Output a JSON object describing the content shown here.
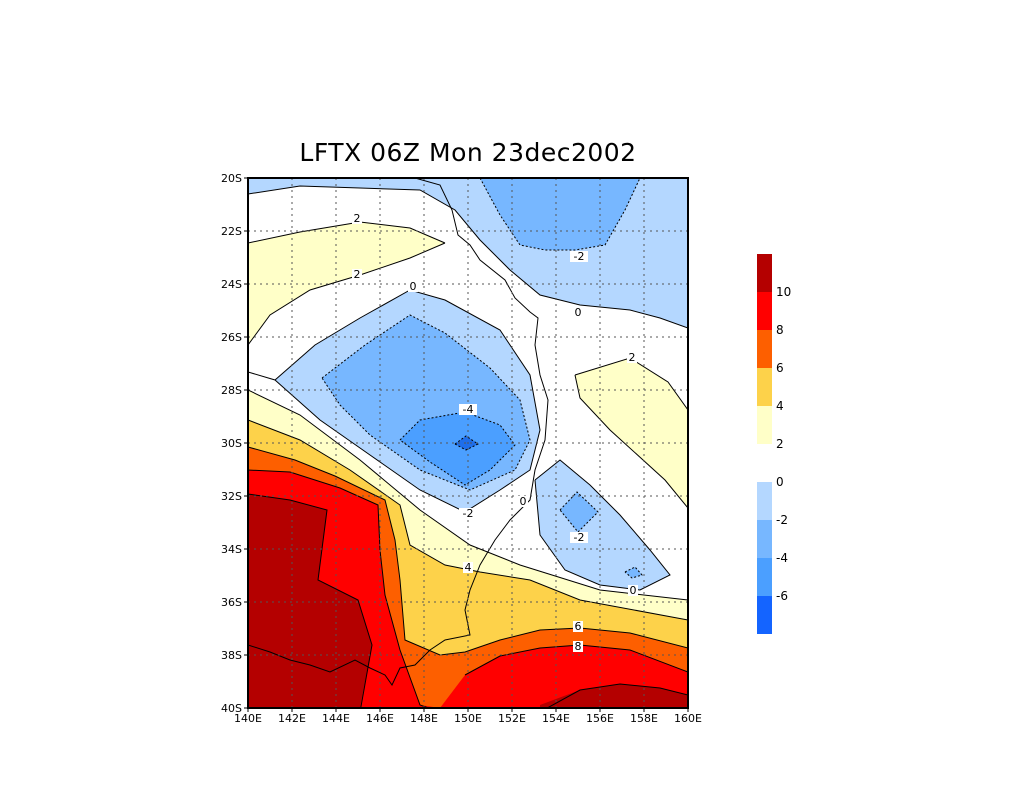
{
  "title": "LFTX 06Z Mon 23dec2002",
  "map": {
    "lon_range": [
      140,
      160
    ],
    "lat_range": [
      -40,
      -20
    ],
    "x_ticks": [
      "140E",
      "142E",
      "144E",
      "146E",
      "148E",
      "150E",
      "152E",
      "154E",
      "156E",
      "158E",
      "160E"
    ],
    "y_ticks": [
      "20S",
      "22S",
      "24S",
      "26S",
      "28S",
      "30S",
      "32S",
      "34S",
      "36S",
      "38S",
      "40S"
    ],
    "grid": "dotted"
  },
  "contour_labels": [
    "2",
    "2",
    "0",
    "-2",
    "0",
    "2",
    "-4",
    "-2",
    "0",
    "-2",
    "4",
    "0",
    "6",
    "8"
  ],
  "colorbar": {
    "warm": [
      {
        "label": "2",
        "color": "#ffffc8"
      },
      {
        "label": "4",
        "color": "#fdd24a"
      },
      {
        "label": "6",
        "color": "#fd5f00"
      },
      {
        "label": "8",
        "color": "#ff0000"
      },
      {
        "label": "10",
        "color": "#b40000"
      }
    ],
    "cool": [
      {
        "label": "0",
        "color": "#b4d7ff"
      },
      {
        "label": "-2",
        "color": "#77b7ff"
      },
      {
        "label": "-4",
        "color": "#4b9fff"
      },
      {
        "label": "-6",
        "color": "#1e6eeb"
      }
    ],
    "bottom_cool_color": "#1464ff"
  }
}
